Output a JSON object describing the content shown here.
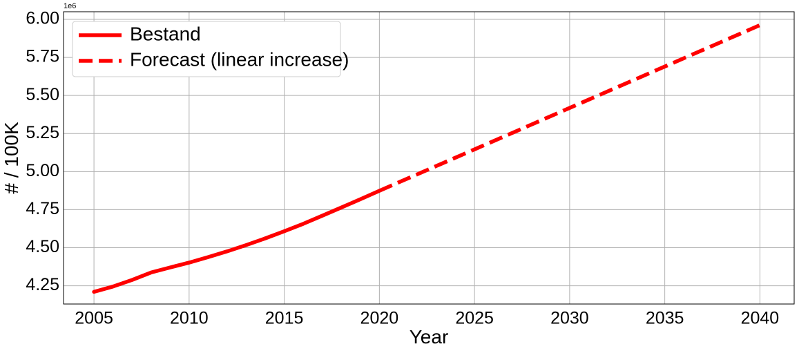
{
  "chart_data": {
    "type": "line",
    "title": "",
    "xlabel": "Year",
    "ylabel": "# / 100K",
    "y_offset_label": "1e6",
    "xlim": [
      2003.4,
      2041.8
    ],
    "ylim": [
      4130000,
      6050000
    ],
    "xticks": [
      2005,
      2010,
      2015,
      2020,
      2025,
      2030,
      2035,
      2040
    ],
    "yticks": [
      4250000,
      4500000,
      4750000,
      5000000,
      5250000,
      5500000,
      5750000,
      6000000
    ],
    "ytick_labels": [
      "4.25",
      "4.50",
      "4.75",
      "5.00",
      "5.25",
      "5.50",
      "5.75",
      "6.00"
    ],
    "grid": true,
    "legend_position": "top-left",
    "colors": {
      "series": "#ff0000",
      "grid": "#b0b0b0"
    },
    "series": [
      {
        "name": "Bestand",
        "style": "solid",
        "x": [
          2005,
          2006,
          2007,
          2008,
          2009,
          2010,
          2011,
          2012,
          2013,
          2014,
          2015,
          2016,
          2017,
          2018,
          2019,
          2020
        ],
        "y": [
          4210000,
          4245000,
          4288000,
          4337000,
          4370000,
          4402000,
          4438000,
          4476000,
          4517000,
          4561000,
          4608000,
          4657000,
          4710000,
          4764000,
          4818000,
          4874000
        ]
      },
      {
        "name": "Forecast (linear increase)",
        "style": "dashed",
        "x": [
          2020,
          2025,
          2030,
          2035,
          2040
        ],
        "y": [
          4874000,
          5146000,
          5418000,
          5690000,
          5962000
        ]
      }
    ]
  }
}
